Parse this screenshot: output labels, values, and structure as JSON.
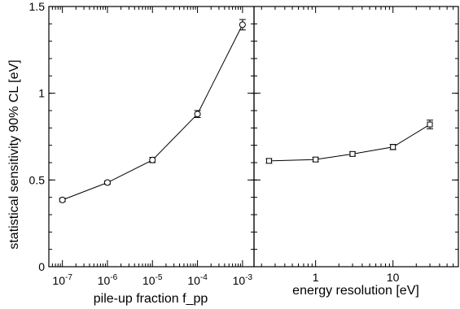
{
  "chart_data": [
    {
      "type": "line",
      "xlabel": "pile-up fraction f_pp",
      "ylabel": "statistical sensitivity 90% CL [eV]",
      "xscale": "log",
      "xlim": [
        5e-08,
        0.0018
      ],
      "ylim": [
        0,
        1.5
      ],
      "x_ticks": [
        {
          "value": 1e-07,
          "base": "10",
          "exp": "-7"
        },
        {
          "value": 1e-06,
          "base": "10",
          "exp": "-6"
        },
        {
          "value": 1e-05,
          "base": "10",
          "exp": "-5"
        },
        {
          "value": 0.0001,
          "base": "10",
          "exp": "-4"
        },
        {
          "value": 0.001,
          "base": "10",
          "exp": "-3"
        }
      ],
      "y_ticks": [
        {
          "value": 0,
          "label": "0"
        },
        {
          "value": 0.5,
          "label": "0.5"
        },
        {
          "value": 1,
          "label": "1"
        },
        {
          "value": 1.5,
          "label": "1.5"
        }
      ],
      "marker": "circle",
      "points": [
        {
          "x": 1e-07,
          "y": 0.385,
          "err": 0.01
        },
        {
          "x": 1e-06,
          "y": 0.485,
          "err": 0.01
        },
        {
          "x": 1e-05,
          "y": 0.615,
          "err": 0.015
        },
        {
          "x": 0.0001,
          "y": 0.88,
          "err": 0.02
        },
        {
          "x": 0.001,
          "y": 1.395,
          "err": 0.03
        }
      ]
    },
    {
      "type": "line",
      "xlabel": "energy resolution [eV]",
      "xscale": "log",
      "xlim": [
        0.16,
        70
      ],
      "ylim": [
        0,
        1.5
      ],
      "x_ticks": [
        {
          "value": 1,
          "label": "1"
        },
        {
          "value": 10,
          "label": "10"
        }
      ],
      "marker": "square",
      "points": [
        {
          "x": 0.25,
          "y": 0.61,
          "err": 0.012
        },
        {
          "x": 1,
          "y": 0.618,
          "err": 0.012
        },
        {
          "x": 3,
          "y": 0.65,
          "err": 0.012
        },
        {
          "x": 10,
          "y": 0.69,
          "err": 0.015
        },
        {
          "x": 30,
          "y": 0.82,
          "err": 0.025
        }
      ]
    }
  ]
}
